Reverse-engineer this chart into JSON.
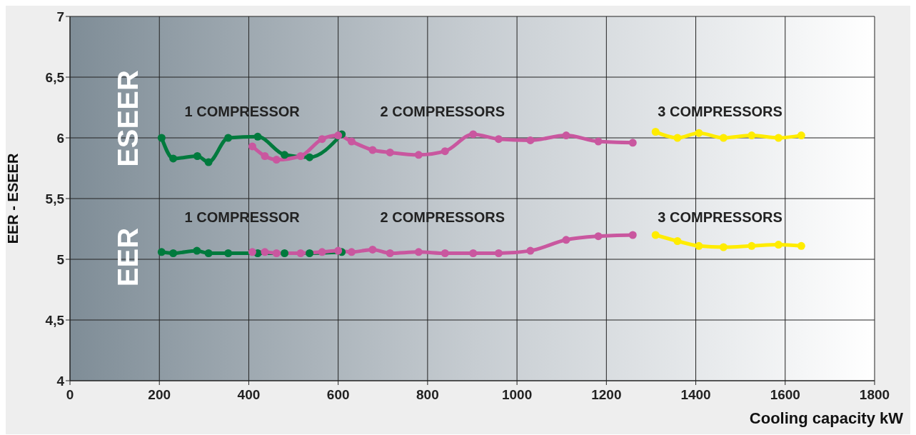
{
  "chart_data": {
    "type": "line",
    "xlabel": "Cooling capacity kW",
    "ylabel": "EER - ESEER",
    "xlim": [
      0,
      1800
    ],
    "xticks": [
      0,
      200,
      400,
      600,
      800,
      1000,
      1200,
      1400,
      1600,
      1800
    ],
    "ylim": [
      4,
      7
    ],
    "yticks": [
      4,
      {
        "value": 4.5,
        "label": "4,5"
      },
      5,
      {
        "value": 5.5,
        "label": "5,5"
      },
      6,
      {
        "value": 6.5,
        "label": "6,5"
      },
      7
    ],
    "grid": true,
    "marker": "circle",
    "line_style": "solid",
    "series": [
      {
        "color": "#007a3d",
        "x": [
          205,
          231,
          285,
          310,
          354,
          420,
          480,
          536,
          608
        ],
        "values": [
          6.0,
          5.83,
          5.85,
          5.8,
          6.0,
          6.01,
          5.86,
          5.84,
          6.03
        ]
      },
      {
        "color": "#c9579f",
        "x": [
          408,
          436,
          462,
          516,
          564,
          600,
          630,
          677,
          716,
          780,
          839,
          902,
          959,
          1030,
          1110,
          1182,
          1259
        ],
        "values": [
          5.93,
          5.85,
          5.82,
          5.85,
          5.99,
          6.02,
          5.97,
          5.9,
          5.88,
          5.86,
          5.89,
          6.03,
          5.99,
          5.98,
          6.02,
          5.97,
          5.96
        ]
      },
      {
        "color": "#ffec00",
        "x": [
          1310,
          1359,
          1407,
          1462,
          1525,
          1585,
          1636
        ],
        "values": [
          6.05,
          6.0,
          6.04,
          6.0,
          6.02,
          6.0,
          6.02
        ]
      },
      {
        "color": "#007a3d",
        "x": [
          205,
          231,
          284,
          310,
          354,
          420,
          480,
          536,
          608
        ],
        "values": [
          5.06,
          5.05,
          5.07,
          5.05,
          5.05,
          5.05,
          5.05,
          5.05,
          5.06
        ]
      },
      {
        "color": "#c9579f",
        "x": [
          408,
          436,
          462,
          516,
          564,
          600,
          630,
          677,
          716,
          780,
          839,
          902,
          959,
          1030,
          1110,
          1182,
          1259
        ],
        "values": [
          5.06,
          5.06,
          5.05,
          5.05,
          5.06,
          5.07,
          5.06,
          5.08,
          5.05,
          5.06,
          5.05,
          5.05,
          5.05,
          5.07,
          5.16,
          5.19,
          5.2
        ]
      },
      {
        "color": "#ffec00",
        "x": [
          1310,
          1359,
          1407,
          1462,
          1525,
          1585,
          1636
        ],
        "values": [
          5.2,
          5.15,
          5.11,
          5.1,
          5.11,
          5.12,
          5.11
        ]
      }
    ],
    "annotations": [
      "ESEER",
      "EER",
      "1 COMPRESSOR",
      "2 COMPRESSORS",
      "3 COMPRESSORS",
      "1 COMPRESSOR",
      "2 COMPRESSORS",
      "3 COMPRESSORS"
    ]
  }
}
